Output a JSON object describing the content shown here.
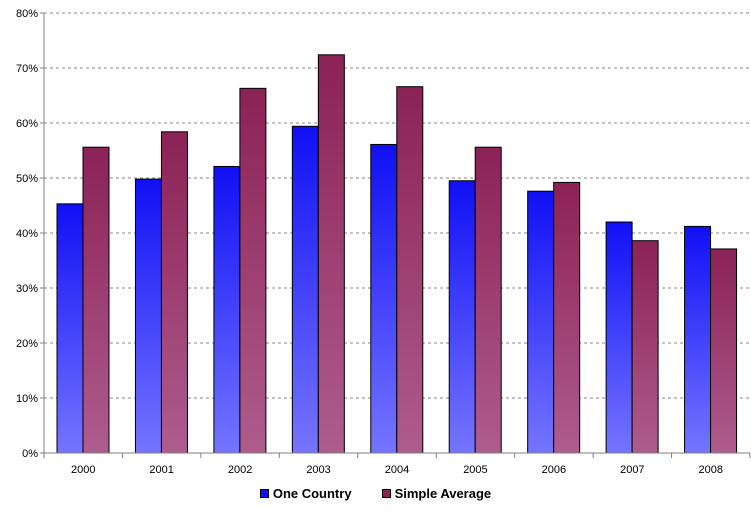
{
  "chart_data": {
    "type": "bar",
    "title": "",
    "xlabel": "",
    "ylabel": "",
    "categories": [
      "2000",
      "2001",
      "2002",
      "2003",
      "2004",
      "2005",
      "2006",
      "2007",
      "2008"
    ],
    "series": [
      {
        "name": "One Country",
        "values": [
          45.3,
          49.8,
          52.1,
          59.4,
          56.1,
          49.5,
          47.6,
          42.0,
          41.2
        ],
        "color_top": "#1010f5",
        "color_bottom": "#7575ff"
      },
      {
        "name": "Simple Average",
        "values": [
          55.6,
          58.4,
          66.3,
          72.4,
          66.6,
          55.6,
          49.2,
          38.6,
          37.1
        ],
        "color_top": "#8c2255",
        "color_bottom": "#ae5c8e"
      }
    ],
    "ylim": [
      0,
      80
    ],
    "y_ticks": [
      0,
      10,
      20,
      30,
      40,
      50,
      60,
      70,
      80
    ],
    "y_tick_labels": [
      "0%",
      "10%",
      "20%",
      "30%",
      "40%",
      "50%",
      "60%",
      "70%",
      "80%"
    ],
    "grid": true,
    "grid_style": "dashed",
    "legend_position": "bottom"
  }
}
